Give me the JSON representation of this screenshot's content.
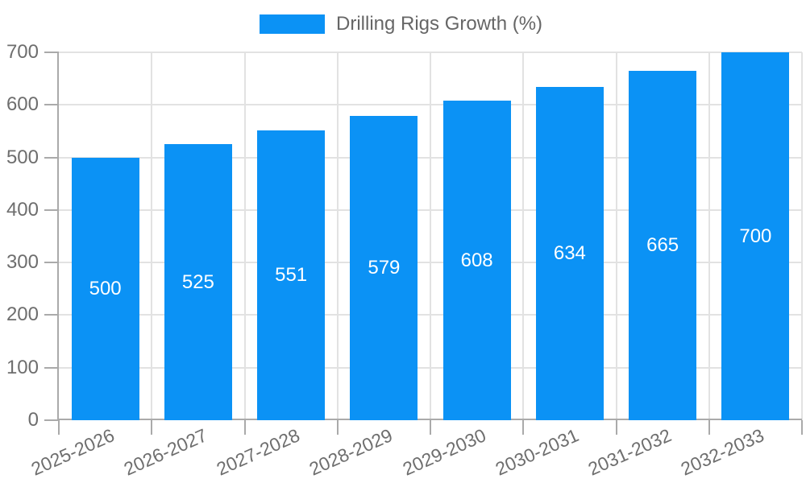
{
  "legend": {
    "label": "Drilling Rigs Growth (%)"
  },
  "chart_data": {
    "type": "bar",
    "title": "",
    "series_name": "Drilling Rigs Growth (%)",
    "categories": [
      "2025-2026",
      "2026-2027",
      "2027-2028",
      "2028-2029",
      "2029-2030",
      "2030-2031",
      "2031-2032",
      "2032-2033"
    ],
    "values": [
      500,
      525,
      551,
      579,
      608,
      634,
      665,
      700
    ],
    "value_labels_shown": true,
    "xlabel": "",
    "ylabel": "",
    "ylim": [
      0,
      700
    ],
    "ytick_step": 100,
    "yticks": [
      0,
      100,
      200,
      300,
      400,
      500,
      600,
      700
    ],
    "grid": "on",
    "legend_position": "top-center",
    "x_label_rotation_deg": -24,
    "colors": {
      "bar": "#0B92F5",
      "grid": "#E2E2E2",
      "axis": "#AAAAAA",
      "tick_label": "#6E6E6E",
      "legend_text": "#666666",
      "value_label": "#FFFFFF",
      "background": "#FFFFFF"
    }
  }
}
